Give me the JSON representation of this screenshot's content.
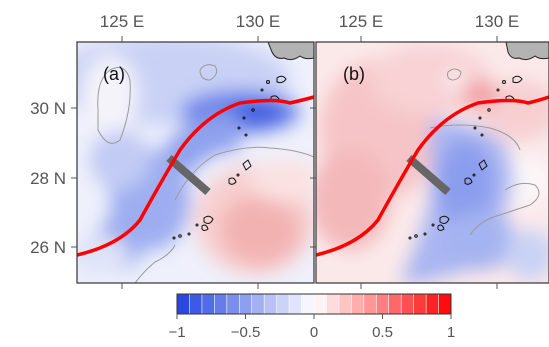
{
  "panels": [
    {
      "label": "(a)"
    },
    {
      "label": "(b)"
    }
  ],
  "axes": {
    "x_ticks": [
      "125 E",
      "130 E"
    ],
    "y_ticks": [
      "30 N",
      "28 N",
      "26 N"
    ]
  },
  "colorbar": {
    "ticks": [
      "−1",
      "−0.5",
      "0",
      "0.5",
      "1"
    ],
    "min": -1,
    "max": 1,
    "n_bins": 22
  },
  "colors": {
    "negative": "#1f3fe0",
    "positive": "#ff0000",
    "contour": "#999999",
    "current_line": "#ff0000",
    "section_line": "#666666",
    "land": "#b3b3b3"
  }
}
